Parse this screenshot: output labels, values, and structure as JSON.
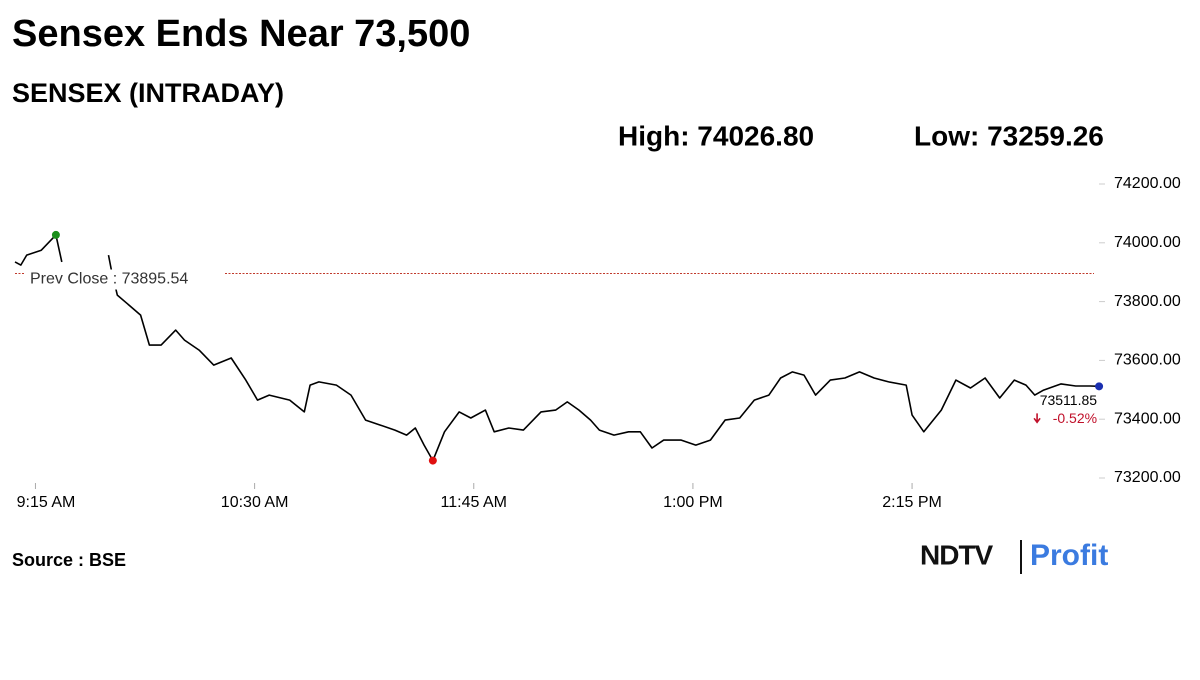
{
  "chart_data": {
    "type": "line",
    "title": "Sensex Ends Near 73,500",
    "subtitle": "SENSEX (INTRADAY)",
    "high_label": "High: 74026.80",
    "low_label": "Low: 73259.26",
    "source": "Source : BSE",
    "brand": [
      "NDTV",
      "Profit"
    ],
    "color": "#000000",
    "high_color": "#1a8f1a",
    "low_color": "#e01010",
    "last_color": "#1a2fb0",
    "reference_line": {
      "value": 73895.54,
      "label": "Prev Close : 73895.54",
      "color": "#c0392b"
    },
    "last_label": "73511.85",
    "change_label": "-0.52%",
    "change_color": "#c0102a",
    "x": [
      "09:08",
      "09:10",
      "09:12",
      "09:17",
      "09:22",
      "09:24",
      "09:32",
      "09:40",
      "09:41",
      "09:43",
      "09:47",
      "09:51",
      "09:54",
      "09:58",
      "10:03",
      "10:06",
      "10:11",
      "10:16",
      "10:22",
      "10:27",
      "10:31",
      "10:35",
      "10:42",
      "10:47",
      "10:49",
      "10:52",
      "10:58",
      "11:03",
      "11:08",
      "11:13",
      "11:18",
      "11:22",
      "11:25",
      "11:28",
      "11:31",
      "11:35",
      "11:40",
      "11:44",
      "11:49",
      "11:52",
      "11:57",
      "12:02",
      "12:08",
      "12:13",
      "12:17",
      "12:21",
      "12:25",
      "12:28",
      "12:33",
      "12:38",
      "12:42",
      "12:46",
      "12:50",
      "12:56",
      "13:01",
      "13:06",
      "13:11",
      "13:16",
      "13:21",
      "13:26",
      "13:30",
      "13:34",
      "13:38",
      "13:42",
      "13:47",
      "13:52",
      "13:57",
      "14:02",
      "14:07",
      "14:13",
      "14:15",
      "14:19",
      "14:25",
      "14:30",
      "14:35",
      "14:40",
      "14:45",
      "14:50",
      "14:54",
      "14:57",
      "15:00",
      "15:06",
      "15:11",
      "15:16",
      "15:19"
    ],
    "values": [
      73935,
      73924,
      73958,
      73975,
      74026.8,
      73935,
      null,
      73958,
      73907,
      73822,
      73788,
      73754,
      73652,
      73652,
      73703,
      73669,
      73635,
      73584,
      73608,
      73533,
      73465,
      73482,
      73465,
      73425,
      73516,
      73527,
      73516,
      73482,
      73397,
      73380,
      73363,
      73346,
      73370,
      73312,
      73259.26,
      73357,
      73425,
      73404,
      73431,
      73357,
      73370,
      73363,
      73425,
      73431,
      73459,
      73431,
      73397,
      73363,
      73346,
      73357,
      73357,
      73302,
      73329,
      73329,
      73312,
      73329,
      73397,
      73404,
      73465,
      73482,
      73540,
      73561,
      73550,
      73482,
      73533,
      73540,
      73561,
      73540,
      73527,
      73516,
      73414,
      73357,
      73431,
      73533,
      73506,
      73540,
      73472,
      73533,
      73516,
      73482,
      73499,
      73520,
      73513,
      73513,
      73511.85
    ],
    "xlim": [
      "09:08",
      "15:20"
    ],
    "xticks": [
      {
        "value": "09:15",
        "label": "9:15 AM"
      },
      {
        "value": "10:30",
        "label": "10:30 AM"
      },
      {
        "value": "11:45",
        "label": "11:45 AM"
      },
      {
        "value": "13:00",
        "label": "1:00 PM"
      },
      {
        "value": "14:15",
        "label": "2:15 PM"
      }
    ],
    "ylim": [
      73200,
      74200
    ],
    "yticks": [
      {
        "value": 73200,
        "label": "73200.00"
      },
      {
        "value": 73400,
        "label": "73400.00"
      },
      {
        "value": 73600,
        "label": "73600.00"
      },
      {
        "value": 73800,
        "label": "73800.00"
      },
      {
        "value": 74000,
        "label": "74000.00"
      },
      {
        "value": 74200,
        "label": "74200.00"
      }
    ]
  }
}
